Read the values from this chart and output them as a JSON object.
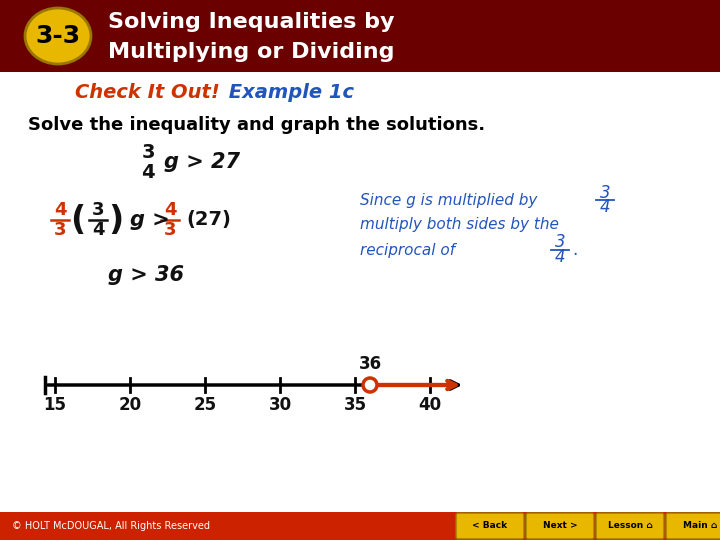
{
  "header_bg_color": "#6B0000",
  "header_text_color": "#FFFFFF",
  "badge_bg_color": "#E8B800",
  "badge_text_color": "#000000",
  "badge_label": "3-3",
  "header_title_line1": "Solving Inequalities by",
  "header_title_line2": "Multiplying or Dividing",
  "check_it_out_color": "#CC3300",
  "example_color": "#2255BB",
  "check_it_out_text": "Check It Out!",
  "example_text": " Example 1c",
  "solve_text": "Solve the inequality and graph the solutions.",
  "solve_color": "#000000",
  "footer_bg_color": "#CC2200",
  "footer_text": "© HOLT McDOUGAL, All Rights Reserved",
  "footer_text_color": "#FFFFFF",
  "number_line_ticks": [
    15,
    20,
    25,
    30,
    35,
    40
  ],
  "number_line_open_circle": 36,
  "number_line_arrow_color": "#CC3300",
  "number_line_color": "#000000",
  "blue_color": "#2255BB",
  "red_color": "#CC3300",
  "black_color": "#111111",
  "fig_width": 7.2,
  "fig_height": 5.4,
  "dpi": 100
}
